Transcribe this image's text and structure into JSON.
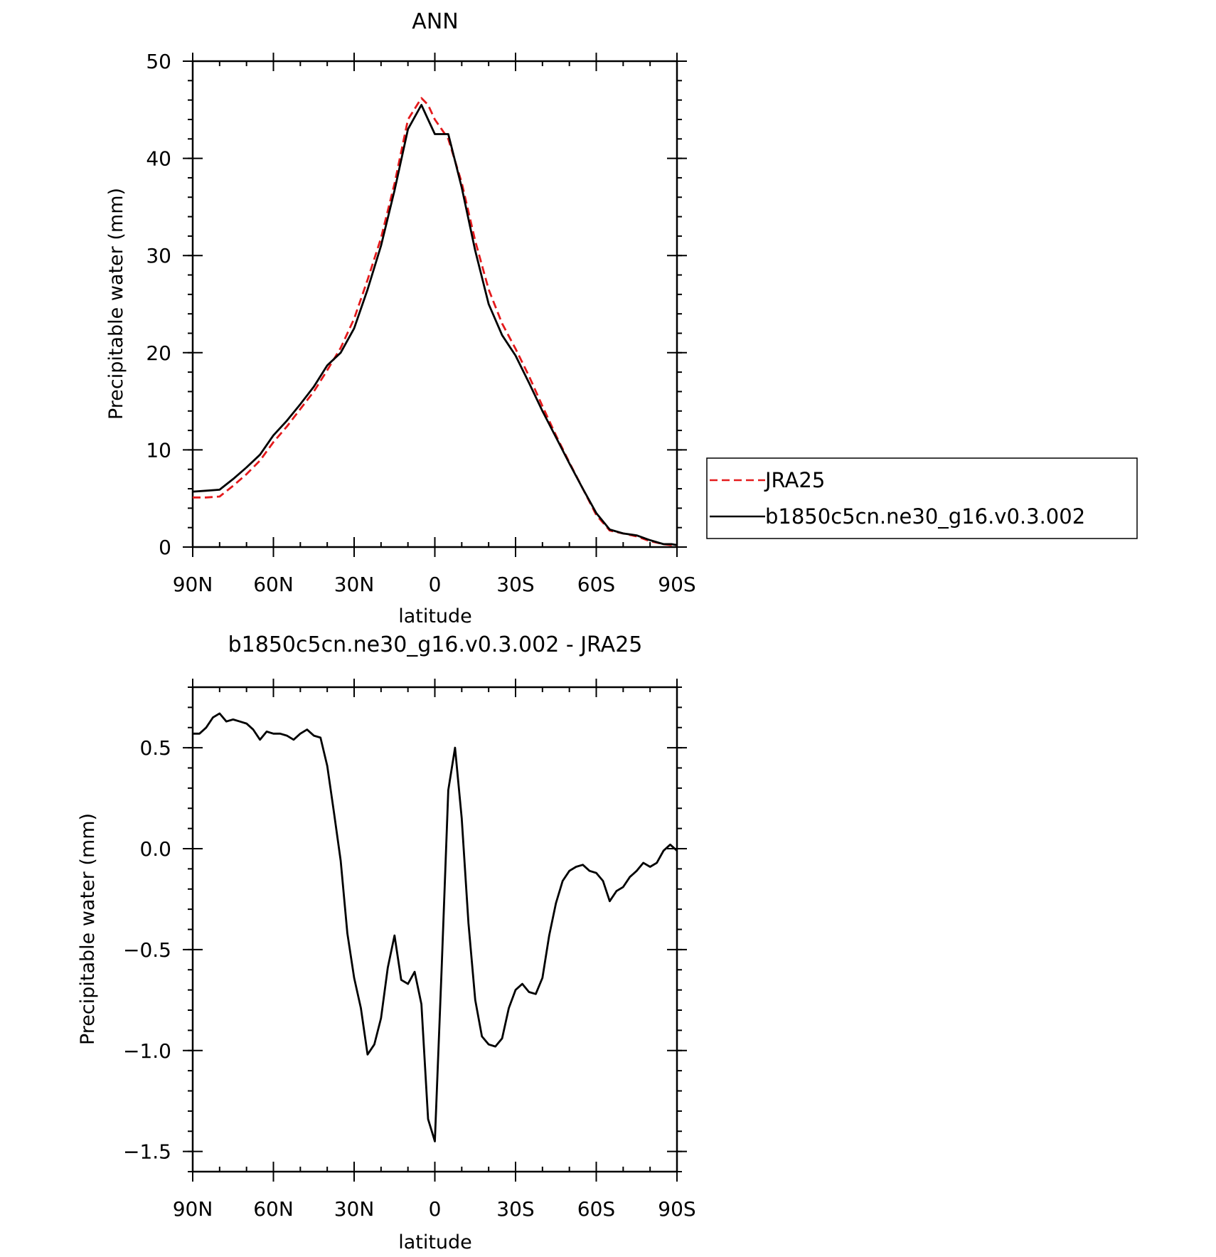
{
  "chart_data": [
    {
      "type": "line",
      "title": "ANN",
      "xlabel": "latitude",
      "ylabel": "Precipitable water (mm)",
      "xlim": [
        90,
        -90
      ],
      "ylim": [
        0,
        50
      ],
      "xticks": [
        {
          "value": 90,
          "label": "90N"
        },
        {
          "value": 60,
          "label": "60N"
        },
        {
          "value": 30,
          "label": "30N"
        },
        {
          "value": 0,
          "label": "0"
        },
        {
          "value": -30,
          "label": "30S"
        },
        {
          "value": -60,
          "label": "60S"
        },
        {
          "value": -90,
          "label": "90S"
        }
      ],
      "yticks": [
        {
          "value": 0,
          "label": "0"
        },
        {
          "value": 10,
          "label": "10"
        },
        {
          "value": 20,
          "label": "20"
        },
        {
          "value": 30,
          "label": "30"
        },
        {
          "value": 40,
          "label": "40"
        },
        {
          "value": 50,
          "label": "50"
        }
      ],
      "legend": "right",
      "series": [
        {
          "name": "JRA25",
          "color": "#e41a1c",
          "dash": "dashed",
          "x": [
            90,
            85,
            80,
            75,
            70,
            65,
            60,
            55,
            50,
            45,
            40,
            35,
            30,
            25,
            20,
            15,
            10,
            5,
            2.5,
            0,
            -2.5,
            -5,
            -10,
            -15,
            -20,
            -25,
            -30,
            -35,
            -40,
            -45,
            -50,
            -55,
            -60,
            -65,
            -70,
            -75,
            -80,
            -85,
            -88,
            -90
          ],
          "y": [
            5.1,
            5.1,
            5.2,
            6.3,
            7.5,
            8.9,
            10.8,
            12.4,
            14.2,
            16.0,
            18.2,
            20.5,
            23.5,
            27.5,
            31.8,
            37.4,
            44.0,
            46.2,
            45.5,
            44.0,
            43.0,
            42.0,
            37.5,
            31.5,
            26.5,
            23.0,
            20.4,
            17.6,
            14.5,
            11.5,
            8.7,
            6.0,
            3.3,
            1.7,
            1.4,
            1.1,
            0.6,
            0.3,
            0.2,
            0.2
          ]
        },
        {
          "name": "b1850c5cn.ne30_g16.v0.3.002",
          "color": "#000000",
          "dash": "solid",
          "x": [
            90,
            85,
            80,
            75,
            70,
            65,
            60,
            55,
            50,
            45,
            40,
            35,
            30,
            25,
            20,
            15,
            10,
            5,
            2.5,
            0,
            -2.5,
            -5,
            -10,
            -15,
            -20,
            -25,
            -30,
            -35,
            -40,
            -45,
            -50,
            -55,
            -60,
            -65,
            -70,
            -75,
            -80,
            -85,
            -88,
            -90
          ],
          "y": [
            5.7,
            5.8,
            5.9,
            7.0,
            8.2,
            9.5,
            11.5,
            13.0,
            14.7,
            16.5,
            18.7,
            20.0,
            22.5,
            26.5,
            31.0,
            36.7,
            43.0,
            45.5,
            44.0,
            42.5,
            42.5,
            42.5,
            37.0,
            30.5,
            25.0,
            21.8,
            19.7,
            16.9,
            14.0,
            11.3,
            8.6,
            6.0,
            3.5,
            1.8,
            1.4,
            1.2,
            0.7,
            0.3,
            0.3,
            0.2
          ]
        }
      ]
    },
    {
      "type": "line",
      "title": "b1850c5cn.ne30_g16.v0.3.002 - JRA25",
      "xlabel": "latitude",
      "ylabel": "Precipitable water (mm)",
      "xlim": [
        90,
        -90
      ],
      "ylim": [
        -1.6,
        0.8
      ],
      "xticks": [
        {
          "value": 90,
          "label": "90N"
        },
        {
          "value": 60,
          "label": "60N"
        },
        {
          "value": 30,
          "label": "30N"
        },
        {
          "value": 0,
          "label": "0"
        },
        {
          "value": -30,
          "label": "30S"
        },
        {
          "value": -60,
          "label": "60S"
        },
        {
          "value": -90,
          "label": "90S"
        }
      ],
      "yticks": [
        {
          "value": 0.5,
          "label": "0.5"
        },
        {
          "value": 0.0,
          "label": "0.0"
        },
        {
          "value": -0.5,
          "label": "−0.5"
        },
        {
          "value": -1.0,
          "label": "−1.0"
        },
        {
          "value": -1.5,
          "label": "−1.5"
        }
      ],
      "series": [
        {
          "color": "#000000",
          "dash": "solid",
          "x": [
            90,
            87.5,
            85,
            82.5,
            80,
            77.5,
            75,
            72.5,
            70,
            67.5,
            65,
            62.5,
            60,
            57.5,
            55,
            52.5,
            50,
            47.5,
            45,
            42.5,
            40,
            37.5,
            35,
            32.5,
            30,
            27.5,
            25,
            22.5,
            20,
            17.5,
            15,
            12.5,
            10,
            7.5,
            5,
            2.5,
            0,
            -2.5,
            -5,
            -7.5,
            -10,
            -12.5,
            -15,
            -17.5,
            -20,
            -22.5,
            -25,
            -27.5,
            -30,
            -32.5,
            -35,
            -37.5,
            -40,
            -42.5,
            -45,
            -47.5,
            -50,
            -52.5,
            -55,
            -57.5,
            -60,
            -62.5,
            -65,
            -67.5,
            -70,
            -72.5,
            -75,
            -77.5,
            -80,
            -82.5,
            -85,
            -87.5,
            -90
          ],
          "y": [
            0.57,
            0.57,
            0.6,
            0.65,
            0.67,
            0.63,
            0.64,
            0.63,
            0.62,
            0.59,
            0.54,
            0.58,
            0.57,
            0.57,
            0.56,
            0.54,
            0.57,
            0.59,
            0.56,
            0.55,
            0.41,
            0.18,
            -0.06,
            -0.42,
            -0.64,
            -0.79,
            -1.02,
            -0.97,
            -0.84,
            -0.59,
            -0.43,
            -0.65,
            -0.67,
            -0.61,
            -0.77,
            -1.34,
            -1.45,
            -0.6,
            0.29,
            0.5,
            0.15,
            -0.37,
            -0.75,
            -0.93,
            -0.97,
            -0.98,
            -0.94,
            -0.79,
            -0.7,
            -0.67,
            -0.71,
            -0.72,
            -0.64,
            -0.43,
            -0.27,
            -0.16,
            -0.11,
            -0.09,
            -0.08,
            -0.11,
            -0.12,
            -0.16,
            -0.26,
            -0.21,
            -0.19,
            -0.14,
            -0.11,
            -0.07,
            -0.09,
            -0.07,
            -0.01,
            0.02,
            -0.01
          ]
        }
      ]
    }
  ]
}
